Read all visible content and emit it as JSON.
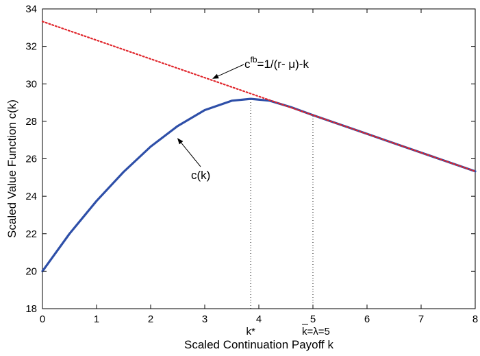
{
  "chart_data": {
    "type": "line",
    "xlabel": "Scaled Continuation Payoff k",
    "ylabel": "Scaled Value Function c(k)",
    "xlim": [
      0,
      8
    ],
    "ylim": [
      18,
      34
    ],
    "x_ticks": [
      0,
      1,
      2,
      3,
      4,
      5,
      6,
      7,
      8
    ],
    "x_tick_labels": [
      "0",
      "1",
      "2",
      "3",
      "4",
      "5",
      "6",
      "7",
      "8"
    ],
    "y_ticks": [
      18,
      20,
      22,
      24,
      26,
      28,
      30,
      32,
      34
    ],
    "y_tick_labels": [
      "18",
      "20",
      "22",
      "24",
      "26",
      "28",
      "30",
      "32",
      "34"
    ],
    "grid": false,
    "series": [
      {
        "name": "c(k)",
        "color": "#2e4fa8",
        "style": "solid",
        "x": [
          0,
          0.5,
          1.0,
          1.5,
          2.0,
          2.5,
          3.0,
          3.5,
          3.85,
          4.2,
          4.6,
          5.0,
          5.5,
          6.0,
          6.5,
          7.0,
          7.5,
          8.0
        ],
        "y": [
          20.0,
          22.0,
          23.75,
          25.3,
          26.65,
          27.75,
          28.6,
          29.1,
          29.2,
          29.1,
          28.75,
          28.33,
          27.83,
          27.33,
          26.83,
          26.33,
          25.83,
          25.33
        ]
      },
      {
        "name": "c^fb = 1/(r-μ) - k",
        "color": "#e0252b",
        "style": "dotted",
        "x": [
          0,
          8
        ],
        "y": [
          33.33,
          25.33
        ]
      }
    ],
    "vlines": [
      {
        "x": 3.85,
        "label": "k*"
      },
      {
        "x": 5.0,
        "label_prefix": "k",
        "label_suffix": "=λ=5"
      }
    ],
    "annotations": [
      {
        "text_main": "c",
        "text_sup": "fb",
        "text_rest": "=1/(r- μ)-k",
        "arrow_to": {
          "x": 3.1,
          "y": 30.4
        }
      },
      {
        "text": "c(k)",
        "arrow_to": {
          "x": 2.45,
          "y": 27.3
        }
      }
    ]
  }
}
